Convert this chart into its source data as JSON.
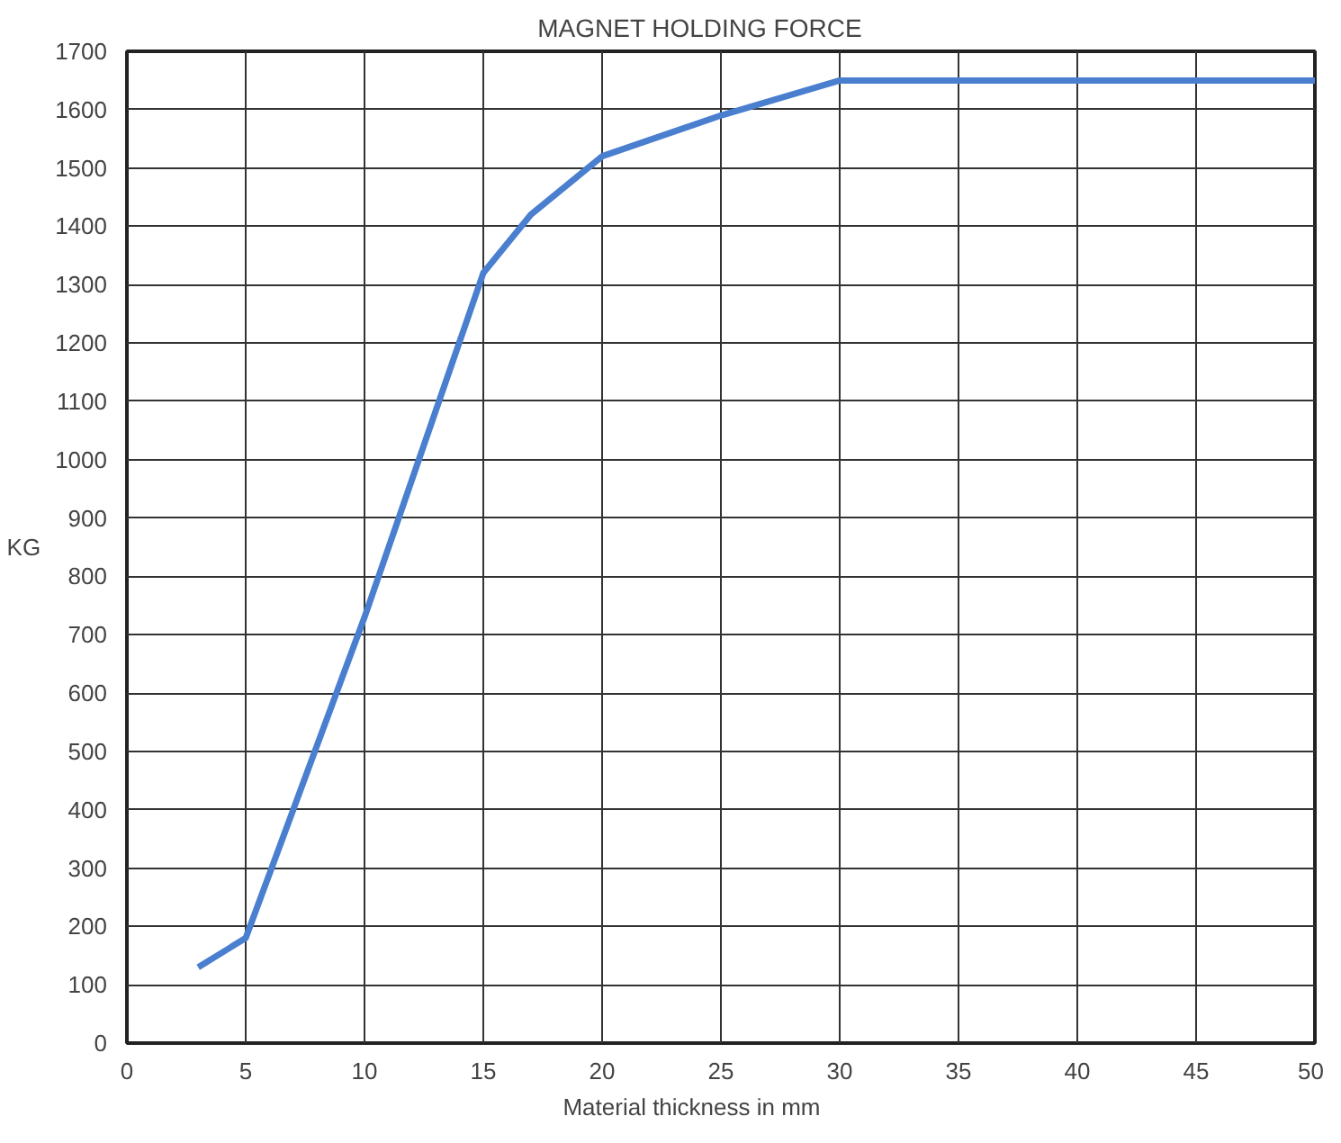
{
  "chart_data": {
    "type": "line",
    "title": "MAGNET    HOLDING    FORCE",
    "xlabel": "Material    thickness    in    mm",
    "ylabel": "KG",
    "x": [
      3,
      5,
      10,
      15,
      17,
      20,
      25,
      30,
      50
    ],
    "series": [
      {
        "color": "#4a7fcf",
        "values": [
          130,
          180,
          730,
          1320,
          1420,
          1520,
          1590,
          1650,
          1650
        ]
      }
    ],
    "xlim": [
      0,
      50
    ],
    "xticks": [
      0,
      5,
      10,
      15,
      20,
      25,
      30,
      35,
      40,
      45,
      50
    ],
    "ylim": [
      0,
      1700
    ],
    "yticks": [
      0,
      100,
      200,
      300,
      400,
      500,
      600,
      700,
      800,
      900,
      1000,
      1100,
      1200,
      1300,
      1400,
      1500,
      1600,
      1700
    ],
    "grid": true,
    "marker": "none",
    "line_style": "solid"
  }
}
